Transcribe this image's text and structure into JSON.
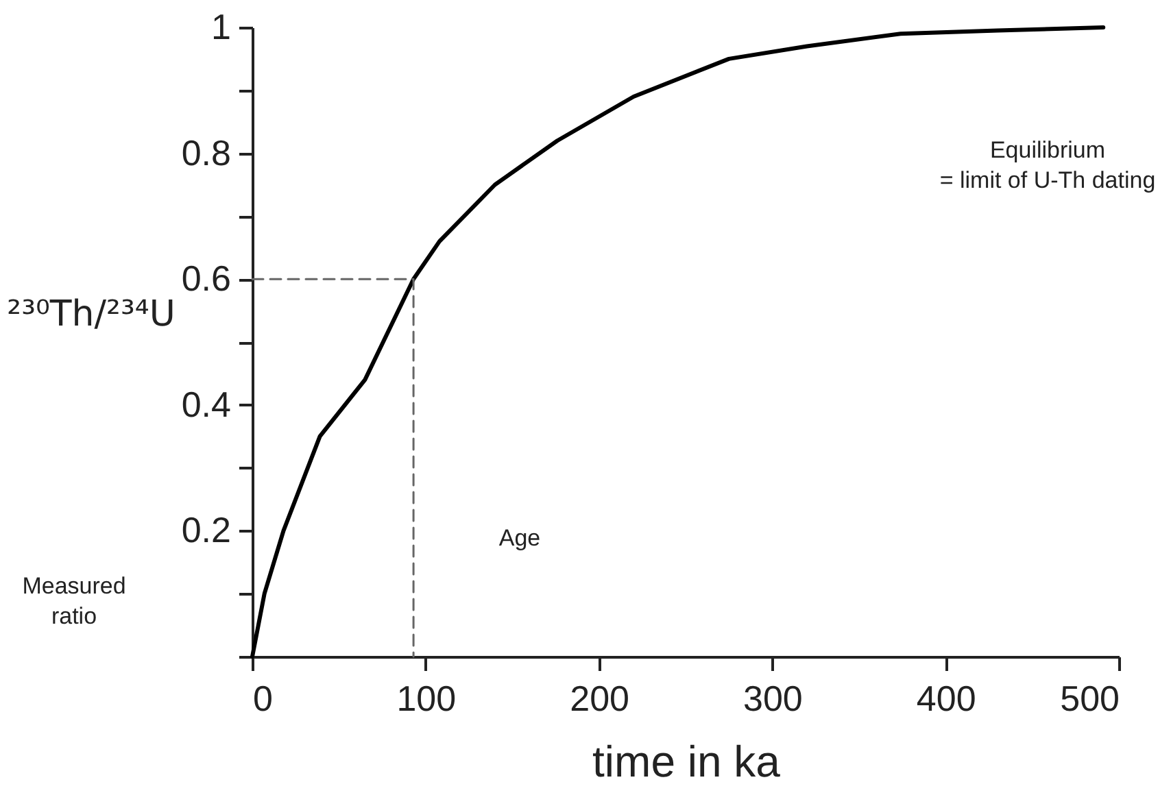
{
  "chart_data": {
    "type": "line",
    "xlabel": "time in ka",
    "ylabel": "²³⁰Th/²³⁴U",
    "xlim": [
      0,
      500
    ],
    "ylim": [
      0,
      1
    ],
    "xticks": [
      0,
      100,
      200,
      300,
      400,
      500
    ],
    "yticks": [
      {
        "value": 0,
        "label": null
      },
      {
        "value": 0.1,
        "label": null
      },
      0.2,
      {
        "value": 0.3,
        "label": null
      },
      0.4,
      {
        "value": 0.5,
        "label": null
      },
      0.6,
      {
        "value": 0.7,
        "label": null
      },
      0.8,
      {
        "value": 0.9,
        "label": null
      },
      1
    ],
    "grid": false,
    "marker": "none",
    "series": [
      {
        "color": "#000000",
        "line_style": "solid",
        "x": [
          0,
          7,
          18,
          39,
          65,
          93,
          108,
          140,
          176,
          220,
          275,
          320,
          374,
          430,
          491
        ],
        "values": [
          0,
          0.1,
          0.2,
          0.35,
          0.44,
          0.6,
          0.66,
          0.75,
          0.82,
          0.89,
          0.95,
          0.97,
          0.99,
          0.995,
          1.0
        ]
      },
      {
        "color": "#666666",
        "line_style": "dashed",
        "x": [
          0,
          93,
          93
        ],
        "values": [
          0.6,
          0.6,
          0
        ]
      }
    ],
    "annotations": [
      "Measured ratio",
      "Age",
      "Equilibrium\n= limit of U-Th dating"
    ]
  }
}
